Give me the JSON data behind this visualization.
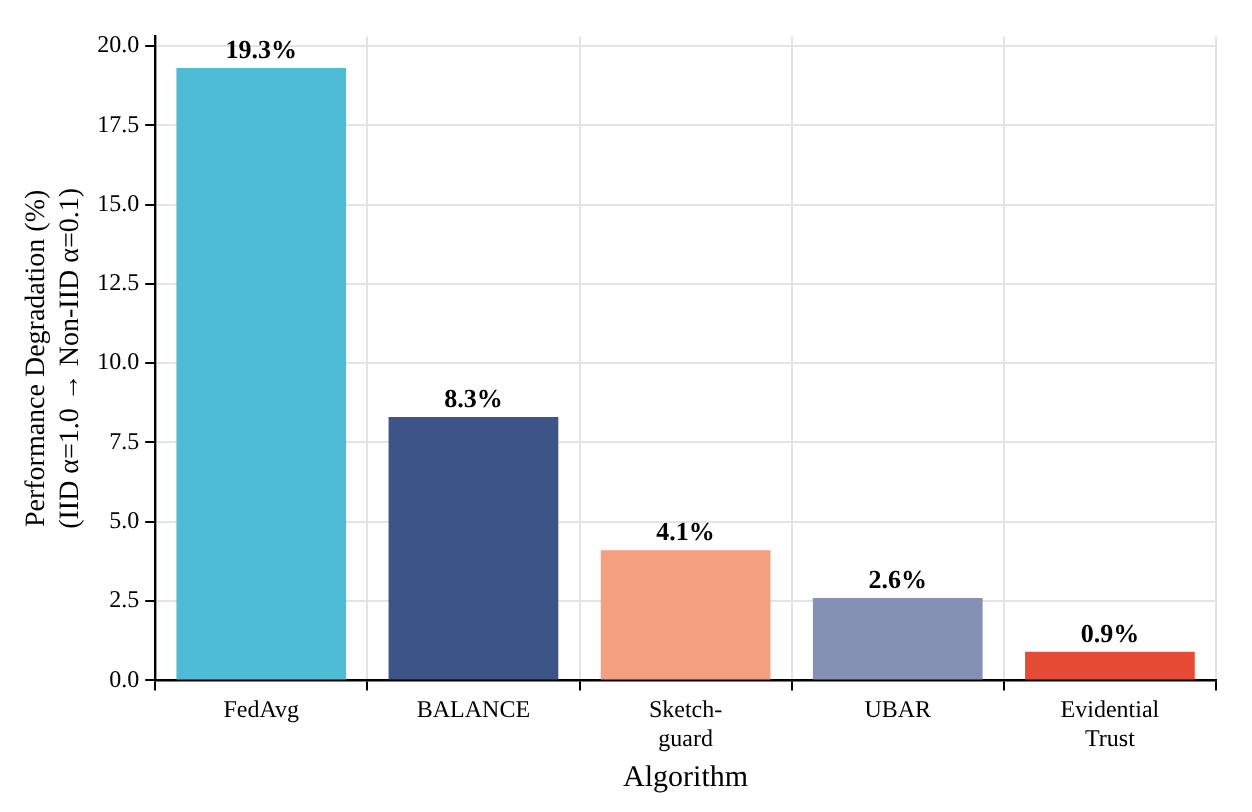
{
  "chart_data": {
    "type": "bar",
    "xlabel": "Algorithm",
    "ylabel": "Performance Degradation (%)\n(IID α=1.0 → Non-IID α=0.1)",
    "categories": [
      "FedAvg",
      "BALANCE",
      "Sketch-\nguard",
      "UBAR",
      "Evidential\nTrust"
    ],
    "values": [
      19.3,
      8.3,
      4.1,
      2.6,
      0.9
    ],
    "colors": [
      "#4fbcd6",
      "#3c5488",
      "#f39f80",
      "#8491b4",
      "#e64b35"
    ],
    "value_labels": [
      "19.3%",
      "8.3%",
      "4.1%",
      "2.6%",
      "0.9%"
    ],
    "ylim": [
      0,
      20.3
    ],
    "yticks": [
      {
        "value": 0,
        "label": "0.0"
      },
      {
        "value": 2.5,
        "label": "2.5"
      },
      {
        "value": 5,
        "label": "5.0"
      },
      {
        "value": 7.5,
        "label": "7.5"
      },
      {
        "value": 10,
        "label": "10.0"
      },
      {
        "value": 12.5,
        "label": "12.5"
      },
      {
        "value": 15,
        "label": "15.0"
      },
      {
        "value": 17.5,
        "label": "17.5"
      },
      {
        "value": 20,
        "label": "20.0"
      }
    ],
    "grid": true
  }
}
